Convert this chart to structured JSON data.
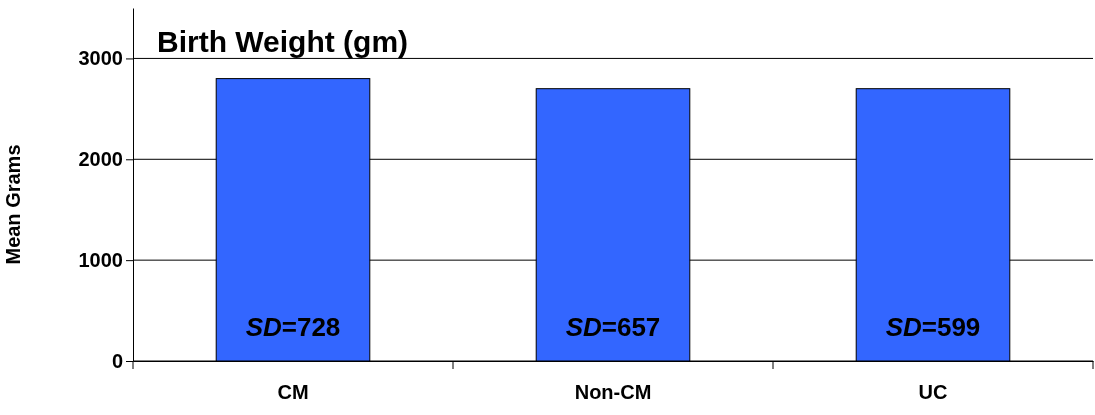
{
  "chart_data": {
    "type": "bar",
    "title": "Birth Weight (gm)",
    "ylabel": "Mean Grams",
    "categories": [
      "CM",
      "Non-CM",
      "UC"
    ],
    "values": [
      2800,
      2700,
      2700
    ],
    "color": "#3366ff",
    "ylim": [
      0,
      3500
    ],
    "yticks": [
      0,
      1000,
      2000,
      3000
    ],
    "grid": "y",
    "annotations": [
      "SD=728",
      "SD=657",
      "SD=599"
    ]
  }
}
